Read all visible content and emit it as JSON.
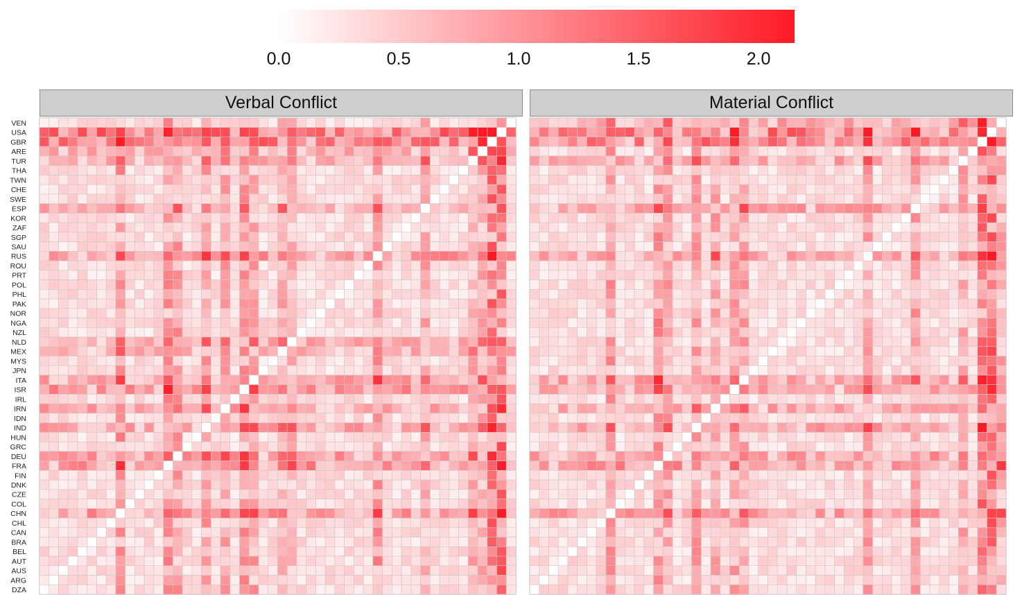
{
  "chart_data": {
    "type": "heatmap",
    "colorbar": {
      "low_color": "#ffffff",
      "high_color": "#fe1a25",
      "min": 0.0,
      "max": 2.15,
      "ticks": [
        "0.0",
        "0.5",
        "1.0",
        "1.5",
        "2.0"
      ],
      "tick_values": [
        0.0,
        0.5,
        1.0,
        1.5,
        2.0
      ]
    },
    "countries": [
      "DZA",
      "ARG",
      "AUS",
      "AUT",
      "BEL",
      "BRA",
      "CAN",
      "CHL",
      "CHN",
      "COL",
      "CZE",
      "DNK",
      "FIN",
      "FRA",
      "DEU",
      "GRC",
      "HUN",
      "IND",
      "IDN",
      "IRN",
      "IRL",
      "ISR",
      "ITA",
      "JPN",
      "MYS",
      "MEX",
      "NLD",
      "NZL",
      "NGA",
      "NOR",
      "PAK",
      "PHL",
      "POL",
      "PRT",
      "ROU",
      "RUS",
      "SAU",
      "SGP",
      "ZAF",
      "KOR",
      "ESP",
      "SWE",
      "CHE",
      "TWN",
      "THA",
      "TUR",
      "ARE",
      "GBR",
      "USA",
      "VEN"
    ],
    "panels": [
      {
        "title": "Verbal Conflict"
      },
      {
        "title": "Material Conflict"
      }
    ]
  }
}
